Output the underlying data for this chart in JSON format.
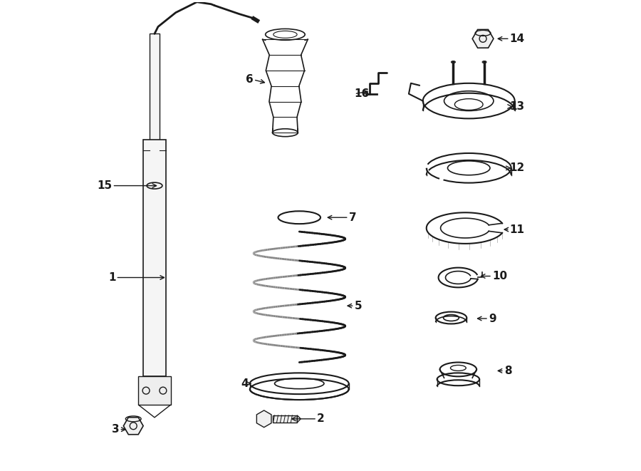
{
  "background_color": "#ffffff",
  "line_color": "#1a1a1a",
  "label_color": "#1a1a1a",
  "fig_width": 9.0,
  "fig_height": 6.61,
  "dpi": 100
}
